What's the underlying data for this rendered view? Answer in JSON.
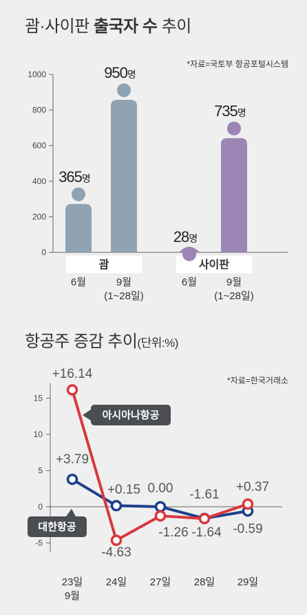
{
  "chart1": {
    "title_part1": "괌·사이판 ",
    "title_bold": "출국자 수",
    "title_part2": " 추이",
    "source": "*자료=국토부 항공포털시스템",
    "chart_data": {
      "type": "bar",
      "ylim": [
        0,
        1000
      ],
      "yticks": [
        "0",
        "200",
        "400",
        "600",
        "800",
        "1000"
      ],
      "groups": [
        {
          "label": "괌",
          "bars": [
            {
              "category": "6월",
              "value": 365,
              "label": "365",
              "unit": "명",
              "color": "#8fa3b3"
            },
            {
              "category": "9월\n(1~28일)",
              "value": 950,
              "label": "950",
              "unit": "명",
              "color": "#8fa3b3"
            }
          ]
        },
        {
          "label": "사이판",
          "bars": [
            {
              "category": "6월",
              "value": 28,
              "label": "28",
              "unit": "명",
              "color": "#9b86b5"
            },
            {
              "category": "9월\n(1~28일)",
              "value": 735,
              "label": "735",
              "unit": "명",
              "color": "#9b86b5"
            }
          ]
        }
      ]
    }
  },
  "chart2": {
    "title_part1": "항공주 증감 ",
    "title_part2": "추이",
    "title_unit": "(단위:%)",
    "source": "*자료=한국거래소",
    "chart_data": {
      "type": "line",
      "categories": [
        "23일\n9월",
        "24일",
        "27일",
        "28일",
        "29일"
      ],
      "ylim": [
        -5,
        15
      ],
      "yticks": [
        "15",
        "10",
        "5",
        "0",
        "-5"
      ],
      "series": [
        {
          "name": "아시아나항공",
          "values": [
            16.14,
            -4.63,
            -1.26,
            -1.64,
            0.37
          ],
          "labels": [
            "+16.14",
            "-4.63",
            "-1.26",
            "-1.64",
            "+0.37"
          ],
          "color": "#d9383c"
        },
        {
          "name": "대한항공",
          "values": [
            3.79,
            0.15,
            0.0,
            -1.61,
            -0.59
          ],
          "labels": [
            "+3.79",
            "+0.15",
            "0.00",
            "-1.61",
            "-0.59"
          ],
          "color": "#1e3f87"
        }
      ]
    }
  }
}
